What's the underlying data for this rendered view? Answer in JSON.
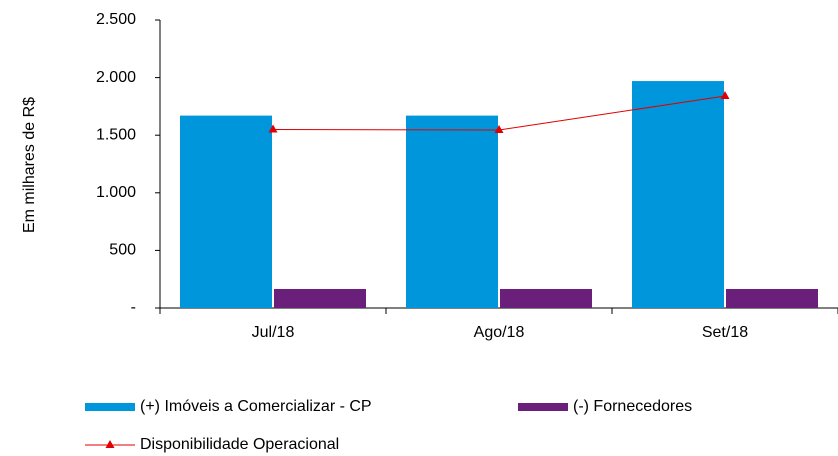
{
  "chart_data": {
    "type": "bar",
    "y_label": "Em milhares de R$",
    "categories": [
      "Jul/18",
      "Ago/18",
      "Set/18"
    ],
    "series": [
      {
        "name": "(+) Imóveis a Comercializar - CP",
        "color": "#0096dc",
        "values": [
          1670,
          1670,
          1970
        ]
      },
      {
        "name": "(-) Fornecedores",
        "color": "#6a1f7a",
        "values": [
          165,
          165,
          165
        ]
      },
      {
        "name": "Disponibilidade Operacional",
        "color": "#e00000",
        "type": "line",
        "values": [
          1550,
          1545,
          1840
        ]
      }
    ],
    "ylim": [
      0,
      2500
    ],
    "yticks": [
      {
        "value": 0,
        "label": "-"
      },
      500,
      {
        "value": 1000,
        "label": "1.000"
      },
      {
        "value": 1500,
        "label": "1.500"
      },
      {
        "value": 2000,
        "label": "2.000"
      },
      {
        "value": 2500,
        "label": "2.500"
      }
    ],
    "grid": false
  }
}
